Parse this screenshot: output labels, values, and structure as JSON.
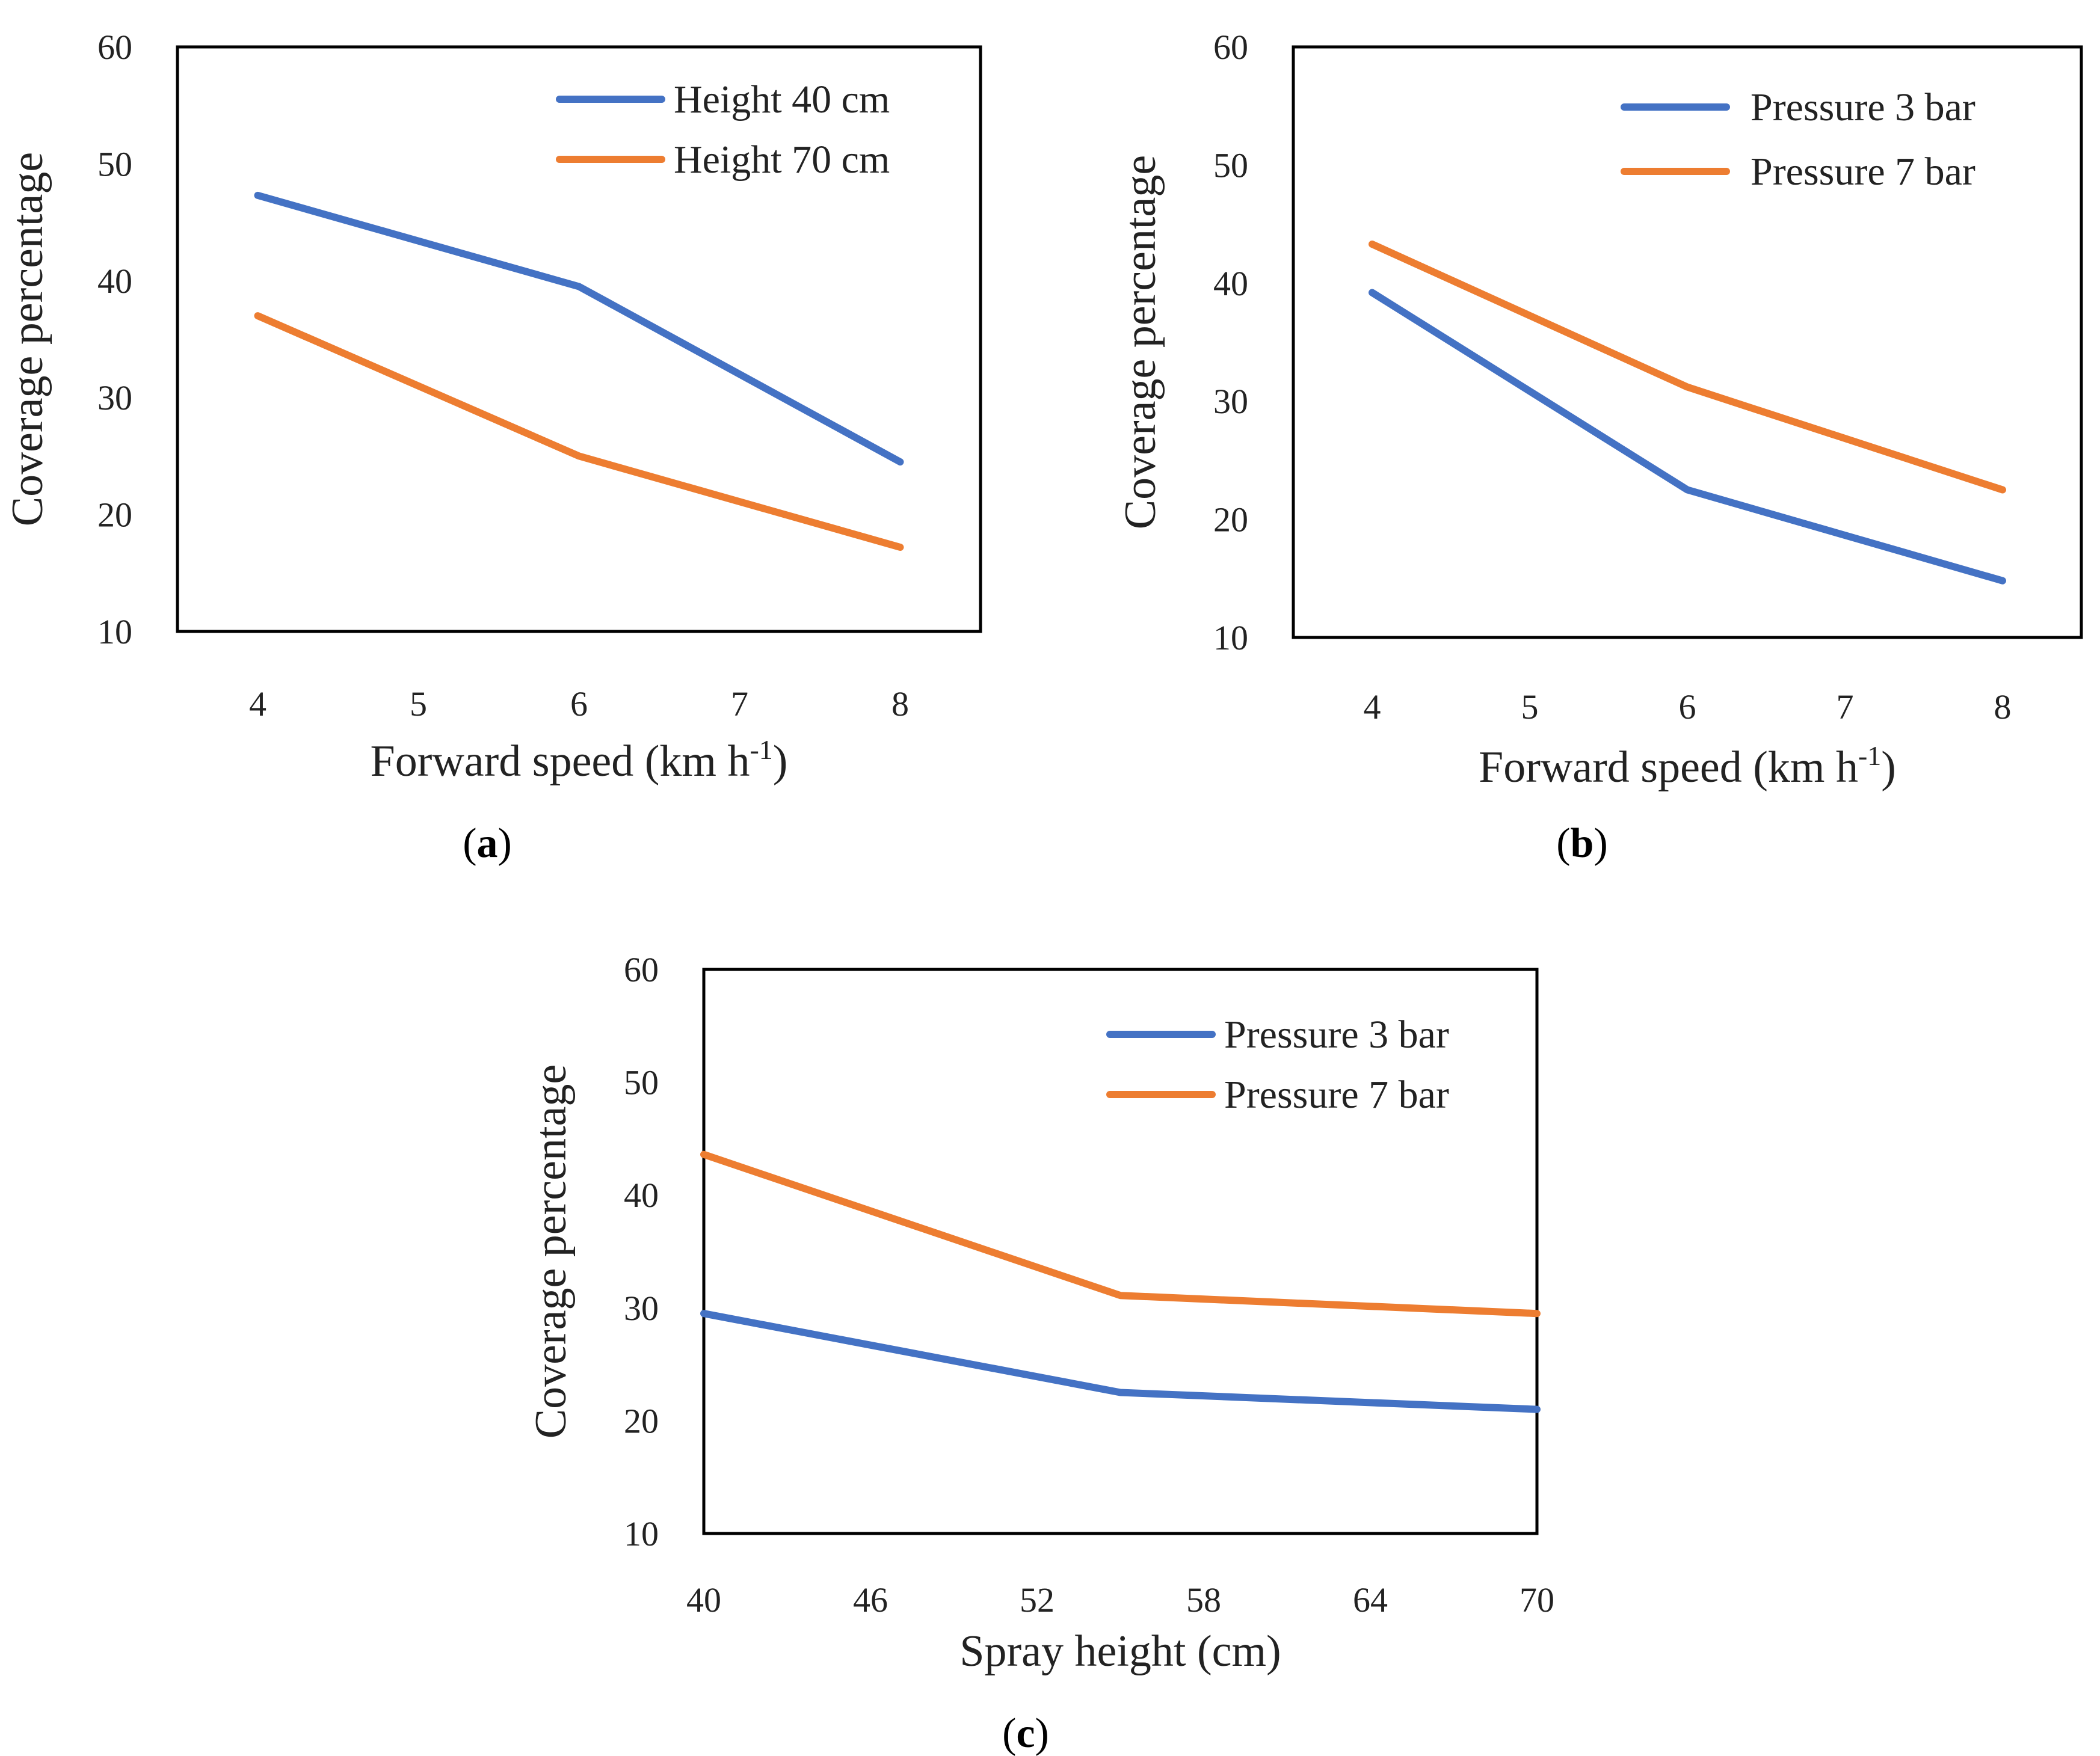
{
  "chart_data": [
    {
      "type": "line",
      "panel": "a",
      "x": [
        4,
        6,
        8
      ],
      "xticks": [
        4,
        5,
        6,
        7,
        8
      ],
      "xlim": [
        3.5,
        8.5
      ],
      "ylim": [
        10,
        60
      ],
      "yticks": [
        10,
        20,
        30,
        40,
        50,
        60
      ],
      "xlabel": "Forward speed (km h",
      "xlabel_sup": "-1",
      "xlabel_end": ")",
      "ylabel": "Coverage percentage",
      "legend_position": "top-right",
      "series": [
        {
          "name": "Height 40 cm",
          "color": "#4472C4",
          "values": [
            47.3,
            39.5,
            24.5
          ]
        },
        {
          "name": "Height 70 cm",
          "color": "#ED7D31",
          "values": [
            37.0,
            25.0,
            17.2
          ]
        }
      ],
      "caption_open": "(",
      "caption_letter": "a",
      "caption_close": ")"
    },
    {
      "type": "line",
      "panel": "b",
      "x": [
        4,
        6,
        8
      ],
      "xticks": [
        4,
        5,
        6,
        7,
        8
      ],
      "xlim": [
        3.5,
        8.5
      ],
      "ylim": [
        10,
        60
      ],
      "yticks": [
        10,
        20,
        30,
        40,
        50,
        60
      ],
      "xlabel": "Forward speed (km h",
      "xlabel_sup": "-1",
      "xlabel_end": ")",
      "ylabel": "Coverage percentage",
      "legend_position": "top-right",
      "series": [
        {
          "name": "Pressure 3 bar",
          "color": "#4472C4",
          "values": [
            39.2,
            22.5,
            14.8
          ]
        },
        {
          "name": "Pressure 7 bar",
          "color": "#ED7D31",
          "values": [
            43.3,
            31.2,
            22.5
          ]
        }
      ],
      "caption_open": "(",
      "caption_letter": "b",
      "caption_close": ")"
    },
    {
      "type": "line",
      "panel": "c",
      "x": [
        40,
        55,
        70
      ],
      "xticks": [
        40,
        46,
        52,
        58,
        64,
        70
      ],
      "xlim": [
        40,
        70
      ],
      "ylim": [
        10,
        60
      ],
      "yticks": [
        10,
        20,
        30,
        40,
        50,
        60
      ],
      "xlabel": "Spray height (cm)",
      "xlabel_sup": "",
      "xlabel_end": "",
      "ylabel": "Coverage percentage",
      "legend_position": "top-right",
      "series": [
        {
          "name": "Pressure 3 bar",
          "color": "#4472C4",
          "values": [
            29.5,
            22.5,
            21.0
          ]
        },
        {
          "name": "Pressure 7 bar",
          "color": "#ED7D31",
          "values": [
            43.6,
            31.1,
            29.5
          ]
        }
      ],
      "caption_open": "(",
      "caption_letter": "c",
      "caption_close": ")"
    }
  ]
}
